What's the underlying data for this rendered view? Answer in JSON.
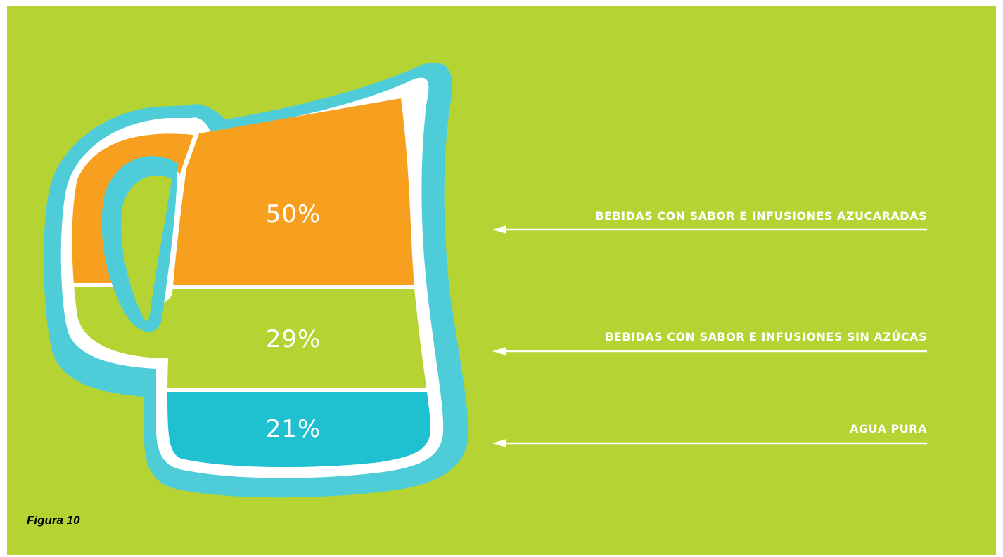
{
  "chart_data": {
    "type": "table",
    "values": [
      {
        "label": "BEBIDAS CON SABOR E INFUSIONES AZUCARADAS",
        "percent": 50,
        "color": "#f7a020"
      },
      {
        "label": "BEBIDAS CON SABOR E INFUSIONES SIN AZÚCAS",
        "percent": 29,
        "color": "#b5d433"
      },
      {
        "label": "AGUA PURA",
        "percent": 21,
        "color": "#1fc0d0"
      }
    ],
    "value_labels": [
      "50%",
      "29%",
      "21%"
    ]
  },
  "colors": {
    "background": "#b5d433",
    "outline": "#4ecdd9",
    "orange": "#f7a020",
    "cyan": "#1fc0d0",
    "white": "#ffffff"
  },
  "figure_caption": "Figura 10"
}
